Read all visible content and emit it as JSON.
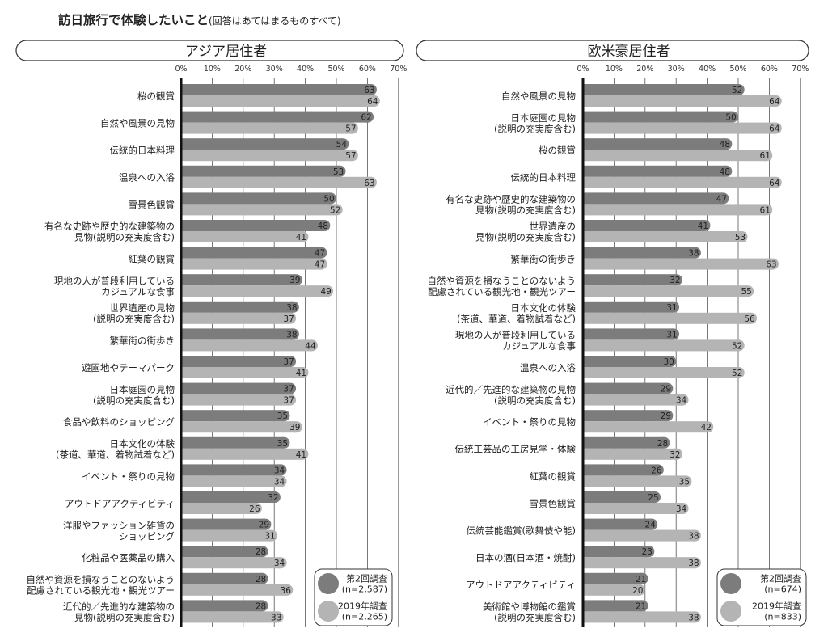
{
  "title": "訪日旅行で体験したいこと",
  "subtitle": "(回答はあてはまるものすべて)",
  "chart_data": [
    {
      "type": "bar",
      "orientation": "horizontal",
      "title": "アジア居住者",
      "xlim": [
        0,
        70
      ],
      "x_ticks": [
        "0%",
        "10%",
        "20%",
        "30%",
        "40%",
        "50%",
        "60%",
        "70%"
      ],
      "grid": true,
      "legend_position": "bottom-right",
      "categories": [
        "桜の観賞",
        "自然や風景の見物",
        "伝統的日本料理",
        "温泉への入浴",
        "雪景色観賞",
        "有名な史跡や歴史的な建築物の\n見物(説明の充実度含む)",
        "紅葉の観賞",
        "現地の人が普段利用している\nカジュアルな食事",
        "世界遺産の見物\n(説明の充実度含む)",
        "繁華街の街歩き",
        "遊園地やテーマパーク",
        "日本庭園の見物\n(説明の充実度含む)",
        "食品や飲料のショッピング",
        "日本文化の体験\n(茶道、華道、着物試着など)",
        "イベント・祭りの見物",
        "アウトドアアクティビティ",
        "洋服やファッション雑貨の\nショッピング",
        "化粧品や医薬品の購入",
        "自然や資源を損なうことのないよう\n配慮されている観光地・観光ツアー",
        "近代的／先進的な建築物の\n見物(説明の充実度含む)"
      ],
      "series": [
        {
          "name": "第2回調査\n(n=2,587)",
          "color": "#7c7c7c",
          "values": [
            63,
            62,
            54,
            53,
            50,
            48,
            47,
            39,
            38,
            38,
            37,
            37,
            35,
            35,
            34,
            32,
            29,
            28,
            28,
            28
          ]
        },
        {
          "name": "2019年調査\n(n=2,265)",
          "color": "#b4b4b4",
          "values": [
            64,
            57,
            57,
            63,
            52,
            41,
            47,
            49,
            37,
            44,
            41,
            37,
            39,
            41,
            34,
            26,
            31,
            34,
            36,
            33
          ]
        }
      ]
    },
    {
      "type": "bar",
      "orientation": "horizontal",
      "title": "欧米豪居住者",
      "xlim": [
        0,
        70
      ],
      "x_ticks": [
        "0%",
        "10%",
        "20%",
        "30%",
        "40%",
        "50%",
        "60%",
        "70%"
      ],
      "grid": true,
      "legend_position": "bottom-right",
      "categories": [
        "自然や風景の見物",
        "日本庭園の見物\n(説明の充実度含む)",
        "桜の観賞",
        "伝統的日本料理",
        "有名な史跡や歴史的な建築物の\n見物(説明の充実度含む)",
        "世界遺産の\n見物(説明の充実度含む)",
        "繁華街の街歩き",
        "自然や資源を損なうことのないよう\n配慮されている観光地・観光ツアー",
        "日本文化の体験\n(茶道、華道、着物試着など)",
        "現地の人が普段利用している\nカジュアルな食事",
        "温泉への入浴",
        "近代的／先進的な建築物の見物\n(説明の充実度含む)",
        "イベント・祭りの見物",
        "伝統工芸品の工房見学・体験",
        "紅葉の観賞",
        "雪景色観賞",
        "伝統芸能鑑賞(歌舞伎や能)",
        "日本の酒(日本酒・焼酎)",
        "アウトドアアクティビティ",
        "美術館や博物館の鑑賞\n(説明の充実度含む)"
      ],
      "series": [
        {
          "name": "第2回調査\n(n=674)",
          "color": "#7c7c7c",
          "values": [
            52,
            50,
            48,
            48,
            47,
            41,
            38,
            32,
            31,
            31,
            30,
            29,
            29,
            28,
            26,
            25,
            24,
            23,
            21,
            21
          ]
        },
        {
          "name": "2019年調査\n(n=833)",
          "color": "#b4b4b4",
          "values": [
            64,
            64,
            61,
            64,
            61,
            53,
            63,
            55,
            56,
            52,
            52,
            34,
            42,
            32,
            35,
            34,
            38,
            38,
            20,
            38
          ]
        }
      ]
    }
  ]
}
